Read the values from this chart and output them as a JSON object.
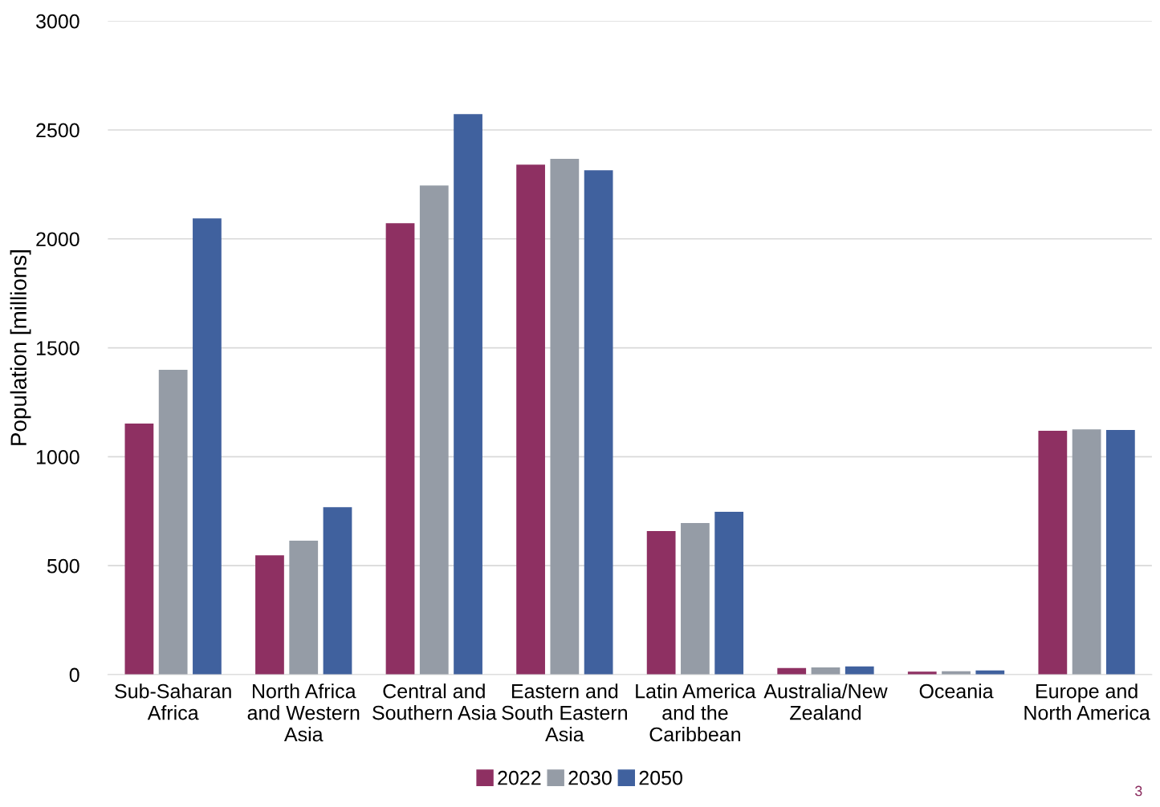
{
  "chart_data": {
    "type": "bar",
    "ylabel": "Population [millions]",
    "categories": [
      "Sub-Saharan Africa",
      "North Africa and Western Asia",
      "Central and Southern Asia",
      "Eastern and South Eastern Asia",
      "Latin America and the Caribbean",
      "Australia/New Zealand",
      "Oceania",
      "Europe and North America"
    ],
    "series": [
      {
        "name": "2022",
        "color": "#8e3062",
        "values": [
          1152,
          548,
          2072,
          2341,
          659,
          30,
          14,
          1119
        ]
      },
      {
        "name": "2030",
        "color": "#959ca6",
        "values": [
          1399,
          615,
          2245,
          2367,
          696,
          33,
          16,
          1126
        ]
      },
      {
        "name": "2050",
        "color": "#40619e",
        "values": [
          2094,
          769,
          2573,
          2315,
          747,
          38,
          19,
          1123
        ]
      }
    ],
    "ylim": [
      0,
      3000
    ],
    "yticks": [
      0,
      500,
      1000,
      1500,
      2000,
      2500,
      3000
    ],
    "grid": "y",
    "legend": "bottom",
    "annotations": [
      "3"
    ]
  }
}
